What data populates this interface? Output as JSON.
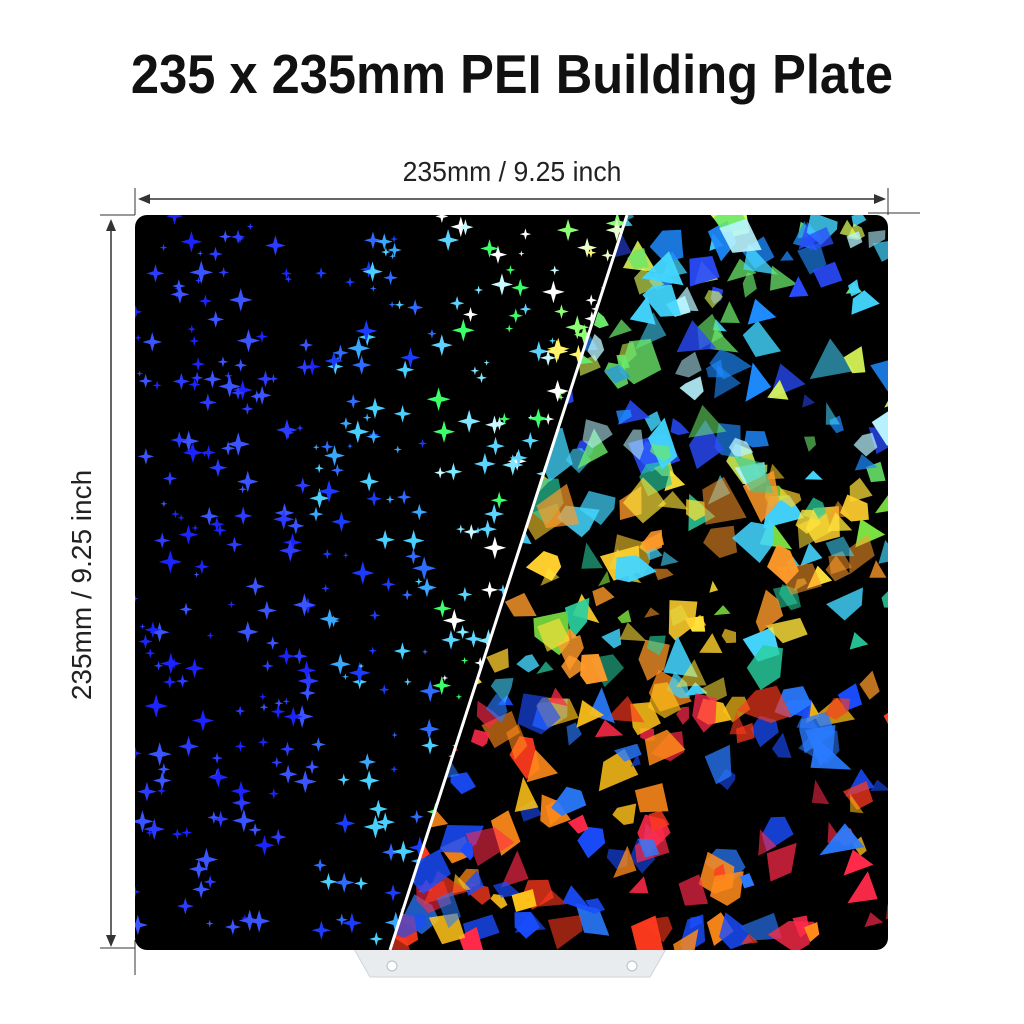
{
  "title": "235 x 235mm PEI Building Plate",
  "dimensions": {
    "width_label": "235mm / 9.25 inch",
    "height_label": "235mm / 9.25 inch"
  },
  "plate": {
    "left_texture": "starry holographic pattern",
    "right_texture": "shattered holographic pattern"
  },
  "colors": {
    "background": "#ffffff",
    "plate_base": "#000000",
    "divider": "#ffffff",
    "tab": "#e9ecef"
  }
}
